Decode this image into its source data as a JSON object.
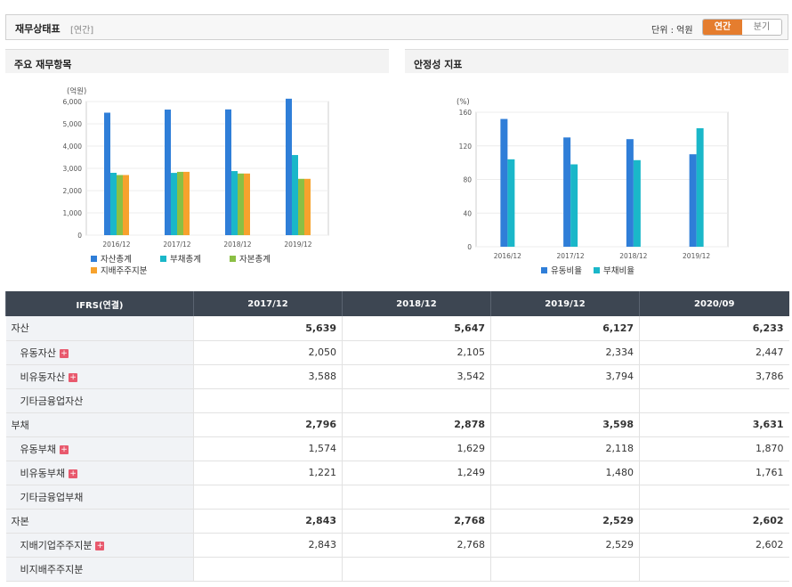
{
  "header": {
    "title": "재무상태표",
    "subtitle": "[연간]",
    "unit_label": "단위 : 억원",
    "toggle": [
      "연간",
      "분기"
    ],
    "accent": "#e57d2e"
  },
  "panels": {
    "left_title": "주요 재무항목",
    "right_title": "안정성 지표"
  },
  "chart_data": [
    {
      "type": "bar",
      "ylabel": "(억원)",
      "categories": [
        "2016/12",
        "2017/12",
        "2018/12",
        "2019/12"
      ],
      "ylim": [
        0,
        6000
      ],
      "yticks": [
        "0",
        "1,000",
        "2,000",
        "3,000",
        "4,000",
        "5,000",
        "6,000"
      ],
      "ytick_values": [
        0,
        1000,
        2000,
        3000,
        4000,
        5000,
        6000
      ],
      "series": [
        {
          "name": "자산총계",
          "color": "#2f7ed8",
          "values": [
            5500,
            5639,
            5647,
            6127
          ]
        },
        {
          "name": "부채총계",
          "color": "#1ab7c9",
          "values": [
            2800,
            2796,
            2878,
            3598
          ]
        },
        {
          "name": "자본총계",
          "color": "#8bbf44",
          "values": [
            2700,
            2843,
            2768,
            2529
          ]
        },
        {
          "name": "지배주주지분",
          "color": "#f7a22d",
          "values": [
            2700,
            2843,
            2768,
            2529
          ]
        }
      ],
      "legend": "bottom"
    },
    {
      "type": "bar",
      "ylabel": "(%)",
      "categories": [
        "2016/12",
        "2017/12",
        "2018/12",
        "2019/12"
      ],
      "ylim": [
        0,
        160
      ],
      "yticks": [
        "0",
        "40",
        "80",
        "120",
        "160"
      ],
      "ytick_values": [
        0,
        40,
        80,
        120,
        160
      ],
      "series": [
        {
          "name": "유동비율",
          "color": "#2f7ed8",
          "values": [
            152,
            130,
            128,
            110
          ]
        },
        {
          "name": "부채비율",
          "color": "#1ab7c9",
          "values": [
            104,
            98,
            103,
            141
          ]
        }
      ],
      "legend": "bottom"
    }
  ],
  "table": {
    "header": [
      "IFRS(연결)",
      "2017/12",
      "2018/12",
      "2019/12",
      "2020/09"
    ],
    "rows": [
      {
        "label": "자산",
        "main": true,
        "plus": false,
        "values": [
          "5,639",
          "5,647",
          "6,127",
          "6,233"
        ]
      },
      {
        "label": "유동자산",
        "main": false,
        "plus": true,
        "values": [
          "2,050",
          "2,105",
          "2,334",
          "2,447"
        ]
      },
      {
        "label": "비유동자산",
        "main": false,
        "plus": true,
        "values": [
          "3,588",
          "3,542",
          "3,794",
          "3,786"
        ]
      },
      {
        "label": "기타금융업자산",
        "main": false,
        "plus": false,
        "values": [
          "",
          "",
          "",
          ""
        ]
      },
      {
        "label": "부채",
        "main": true,
        "plus": false,
        "values": [
          "2,796",
          "2,878",
          "3,598",
          "3,631"
        ]
      },
      {
        "label": "유동부채",
        "main": false,
        "plus": true,
        "values": [
          "1,574",
          "1,629",
          "2,118",
          "1,870"
        ]
      },
      {
        "label": "비유동부채",
        "main": false,
        "plus": true,
        "values": [
          "1,221",
          "1,249",
          "1,480",
          "1,761"
        ]
      },
      {
        "label": "기타금융업부채",
        "main": false,
        "plus": false,
        "values": [
          "",
          "",
          "",
          ""
        ]
      },
      {
        "label": "자본",
        "main": true,
        "plus": false,
        "values": [
          "2,843",
          "2,768",
          "2,529",
          "2,602"
        ]
      },
      {
        "label": "지배기업주주지분",
        "main": false,
        "plus": true,
        "values": [
          "2,843",
          "2,768",
          "2,529",
          "2,602"
        ]
      },
      {
        "label": "비지배주주지분",
        "main": false,
        "plus": false,
        "values": [
          "",
          "",
          "",
          ""
        ]
      }
    ],
    "plus_glyph": "+"
  }
}
